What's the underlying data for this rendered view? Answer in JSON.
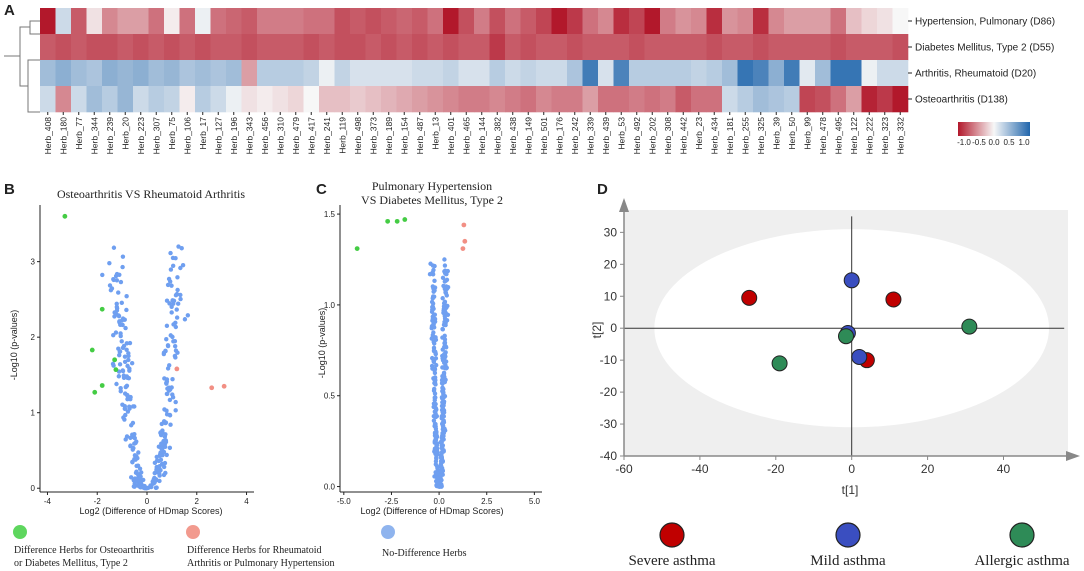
{
  "panel_labels": {
    "a": "A",
    "b": "B",
    "c": "C",
    "d": "D"
  },
  "chart_data": [
    {
      "type": "heatmap",
      "panel": "A",
      "rows": [
        "Hypertension, Pulmonary (D86)",
        "Diabetes Mellitus, Type 2 (D55)",
        "Arthritis, Rheumatoid (D20)",
        "Osteoarthritis (D138)"
      ],
      "columns": [
        "Herb_408",
        "Herb_180",
        "Herb_77",
        "Herb_344",
        "Herb_239",
        "Herb_20",
        "Herb_223",
        "Herb_307",
        "Herb_75",
        "Herb_106",
        "Herb_17",
        "Herb_127",
        "Herb_196",
        "Herb_343",
        "Herb_456",
        "Herb_310",
        "Herb_479",
        "Herb_417",
        "Herb_241",
        "Herb_119",
        "Herb_498",
        "Herb_373",
        "Herb_189",
        "Herb_154",
        "Herb_487",
        "Herb_13",
        "Herb_401",
        "Herb_465",
        "Herb_144",
        "Herb_382",
        "Herb_438",
        "Herb_149",
        "Herb_501",
        "Herb_176",
        "Herb_242",
        "Herb_339",
        "Herb_439",
        "Herb_53",
        "Herb_492",
        "Herb_202",
        "Herb_308",
        "Herb_442",
        "Herb_23",
        "Herb_434",
        "Herb_181",
        "Herb_255",
        "Herb_325",
        "Herb_39",
        "Herb_50",
        "Herb_99",
        "Herb_478",
        "Herb_495",
        "Herb_122",
        "Herb_222",
        "Herb_323",
        "Herb_332"
      ],
      "values": [
        [
          -1.0,
          0.2,
          -0.7,
          -0.1,
          -0.5,
          -0.4,
          -0.4,
          -0.6,
          -0.05,
          -0.6,
          0.05,
          -0.6,
          -0.65,
          -0.7,
          -0.55,
          -0.55,
          -0.55,
          -0.6,
          -0.6,
          -0.75,
          -0.7,
          -0.75,
          -0.7,
          -0.65,
          -0.7,
          -0.6,
          -1.0,
          -0.75,
          -0.55,
          -0.75,
          -0.6,
          -0.7,
          -0.8,
          -1.0,
          -0.85,
          -0.6,
          -0.5,
          -0.9,
          -0.8,
          -1.0,
          -0.55,
          -0.45,
          -0.5,
          -0.9,
          -0.45,
          -0.5,
          -0.9,
          -0.5,
          -0.4,
          -0.4,
          -0.4,
          -0.6,
          -0.25,
          -0.15,
          -0.1,
          0.0
        ],
        [
          -0.7,
          -0.75,
          -0.7,
          -0.75,
          -0.75,
          -0.7,
          -0.75,
          -0.7,
          -0.75,
          -0.7,
          -0.75,
          -0.7,
          -0.7,
          -0.75,
          -0.7,
          -0.7,
          -0.7,
          -0.75,
          -0.7,
          -0.75,
          -0.75,
          -0.7,
          -0.75,
          -0.7,
          -0.75,
          -0.7,
          -0.75,
          -0.7,
          -0.7,
          -0.85,
          -0.7,
          -0.75,
          -0.7,
          -0.7,
          -0.75,
          -0.7,
          -0.7,
          -0.7,
          -0.75,
          -0.7,
          -0.7,
          -0.7,
          -0.7,
          -0.75,
          -0.7,
          -0.7,
          -0.75,
          -0.7,
          -0.7,
          -0.7,
          -0.7,
          -0.75,
          -0.7,
          -0.7,
          -0.7,
          -0.75
        ],
        [
          0.4,
          0.5,
          0.4,
          0.35,
          0.5,
          0.45,
          0.5,
          0.4,
          0.45,
          0.35,
          0.4,
          0.35,
          0.4,
          -0.4,
          0.3,
          0.3,
          0.3,
          0.25,
          0.05,
          0.25,
          0.15,
          0.15,
          0.15,
          0.15,
          0.2,
          0.2,
          0.25,
          0.15,
          0.15,
          0.3,
          0.2,
          0.25,
          0.2,
          0.2,
          0.35,
          0.85,
          0.15,
          0.8,
          0.3,
          0.3,
          0.3,
          0.3,
          0.25,
          0.3,
          0.4,
          0.9,
          0.8,
          0.5,
          0.85,
          0.1,
          0.4,
          0.9,
          0.9,
          0.05,
          0.2,
          0.2
        ],
        [
          0.2,
          -0.5,
          0.2,
          0.4,
          0.3,
          0.45,
          0.2,
          0.3,
          0.25,
          -0.05,
          0.3,
          0.2,
          0.05,
          -0.1,
          -0.05,
          -0.1,
          -0.15,
          0.0,
          -0.25,
          -0.25,
          -0.2,
          -0.25,
          -0.3,
          -0.35,
          -0.4,
          -0.45,
          -0.5,
          -0.55,
          -0.55,
          -0.5,
          -0.55,
          -0.6,
          -0.5,
          -0.55,
          -0.55,
          -0.4,
          -0.6,
          -0.6,
          -0.55,
          -0.6,
          -0.55,
          -0.7,
          -0.6,
          -0.6,
          0.2,
          0.3,
          0.4,
          0.35,
          0.3,
          -0.8,
          -0.75,
          -0.6,
          -0.4,
          -0.95,
          -0.85,
          -1.0
        ]
      ],
      "colorbar": {
        "ticks": [
          "-1.0",
          "-0.5",
          "0.0",
          "0.5",
          "1.0"
        ],
        "low_color": "#b2182b",
        "mid_color": "#f7f7f7",
        "high_color": "#2166ac"
      }
    },
    {
      "type": "scatter",
      "panel": "B",
      "title": "Osteoarthritis VS Rheumatoid Arthritis",
      "xlabel": "Log2 (Difference of HDmap Scores)",
      "ylabel": "-Log10 (p-values)",
      "xlim": [
        -4.3,
        4.3
      ],
      "ylim": [
        -0.05,
        3.75
      ],
      "xticks": [
        "-4",
        "-2",
        "0",
        "2",
        "4"
      ],
      "yticks": [
        "0",
        "1",
        "2",
        "3"
      ],
      "green_points": [
        [
          -3.3,
          3.6
        ],
        [
          -1.8,
          2.37
        ],
        [
          -2.2,
          1.83
        ],
        [
          -1.3,
          1.7
        ],
        [
          -1.25,
          1.57
        ],
        [
          -1.8,
          1.36
        ],
        [
          -2.1,
          1.27
        ]
      ],
      "red_points": [
        [
          1.2,
          1.58
        ],
        [
          2.6,
          1.33
        ],
        [
          3.1,
          1.35
        ]
      ],
      "blue_seed": 11,
      "blue_count": 310,
      "blue_shape": [
        0.75,
        0.55,
        3.2
      ]
    },
    {
      "type": "scatter",
      "panel": "C",
      "title": "Pulmonary Hypertension VS Diabetes Mellitus, Type 2",
      "title_line1": "Pulmonary Hypertension",
      "title_line2": "VS Diabetes Mellitus, Type 2",
      "xlabel": "Log2 (Difference of HDmap Scores)",
      "ylabel": "-Log10 (p-values)",
      "xlim": [
        -5.2,
        5.4
      ],
      "ylim": [
        -0.03,
        1.55
      ],
      "xticks": [
        "-5.0",
        "-2.5",
        "0.0",
        "2.5",
        "5.0"
      ],
      "yticks": [
        "0.0",
        "0.5",
        "1.0",
        "1.5"
      ],
      "green_points": [
        [
          -2.7,
          1.46
        ],
        [
          -2.2,
          1.46
        ],
        [
          -1.8,
          1.47
        ],
        [
          -4.3,
          1.31
        ]
      ],
      "red_points": [
        [
          1.3,
          1.44
        ],
        [
          1.35,
          1.35
        ],
        [
          1.25,
          1.31
        ]
      ],
      "blue_seed": 7,
      "blue_count": 380,
      "blue_shape": [
        0.3,
        0.18,
        1.25
      ]
    },
    {
      "type": "scatter",
      "panel": "D",
      "xlabel": "t[1]",
      "ylabel": "t[2]",
      "xlim": [
        -60,
        57
      ],
      "ylim": [
        -40,
        37
      ],
      "xticks": [
        -60,
        -40,
        -20,
        0,
        20,
        40
      ],
      "yticks": [
        30,
        20,
        10,
        0,
        -10,
        -20,
        -30,
        -40
      ],
      "series": [
        {
          "name": "Severe asthma",
          "color": "#c00000",
          "points": [
            [
              -27,
              9.5
            ],
            [
              11,
              9
            ],
            [
              4,
              -10
            ]
          ]
        },
        {
          "name": "Mild asthma",
          "color": "#3a4ec0",
          "points": [
            [
              0,
              15
            ],
            [
              -1,
              -1.5
            ],
            [
              2,
              -9
            ]
          ]
        },
        {
          "name": "Allergic asthma",
          "color": "#2e8b57",
          "points": [
            [
              31,
              0.5
            ],
            [
              -19,
              -11
            ],
            [
              -1.5,
              -2.5
            ]
          ]
        }
      ]
    }
  ],
  "legend_bc": [
    {
      "label_line1": "Difference Herbs for Osteoarthritis",
      "label_line2": "or Diabetes Mellitus, Type 2",
      "color": "#5ed65e"
    },
    {
      "label_line1": "Difference Herbs for Rheumatoid",
      "label_line2": "Arthritis or Pulmonary Hypertension",
      "color": "#f29a8e"
    },
    {
      "label_line1": "No-Difference Herbs",
      "label_line2": "",
      "color": "#8fb4ee"
    }
  ],
  "legend_d": [
    {
      "label": "Severe asthma",
      "color": "#c00000"
    },
    {
      "label": "Mild asthma",
      "color": "#3a4ec0"
    },
    {
      "label": "Allergic asthma",
      "color": "#2e8b57"
    }
  ],
  "colors": {
    "blue_dot": "#6f9ff0",
    "green_dot": "#44cc44",
    "red_dot": "#f28f84"
  }
}
